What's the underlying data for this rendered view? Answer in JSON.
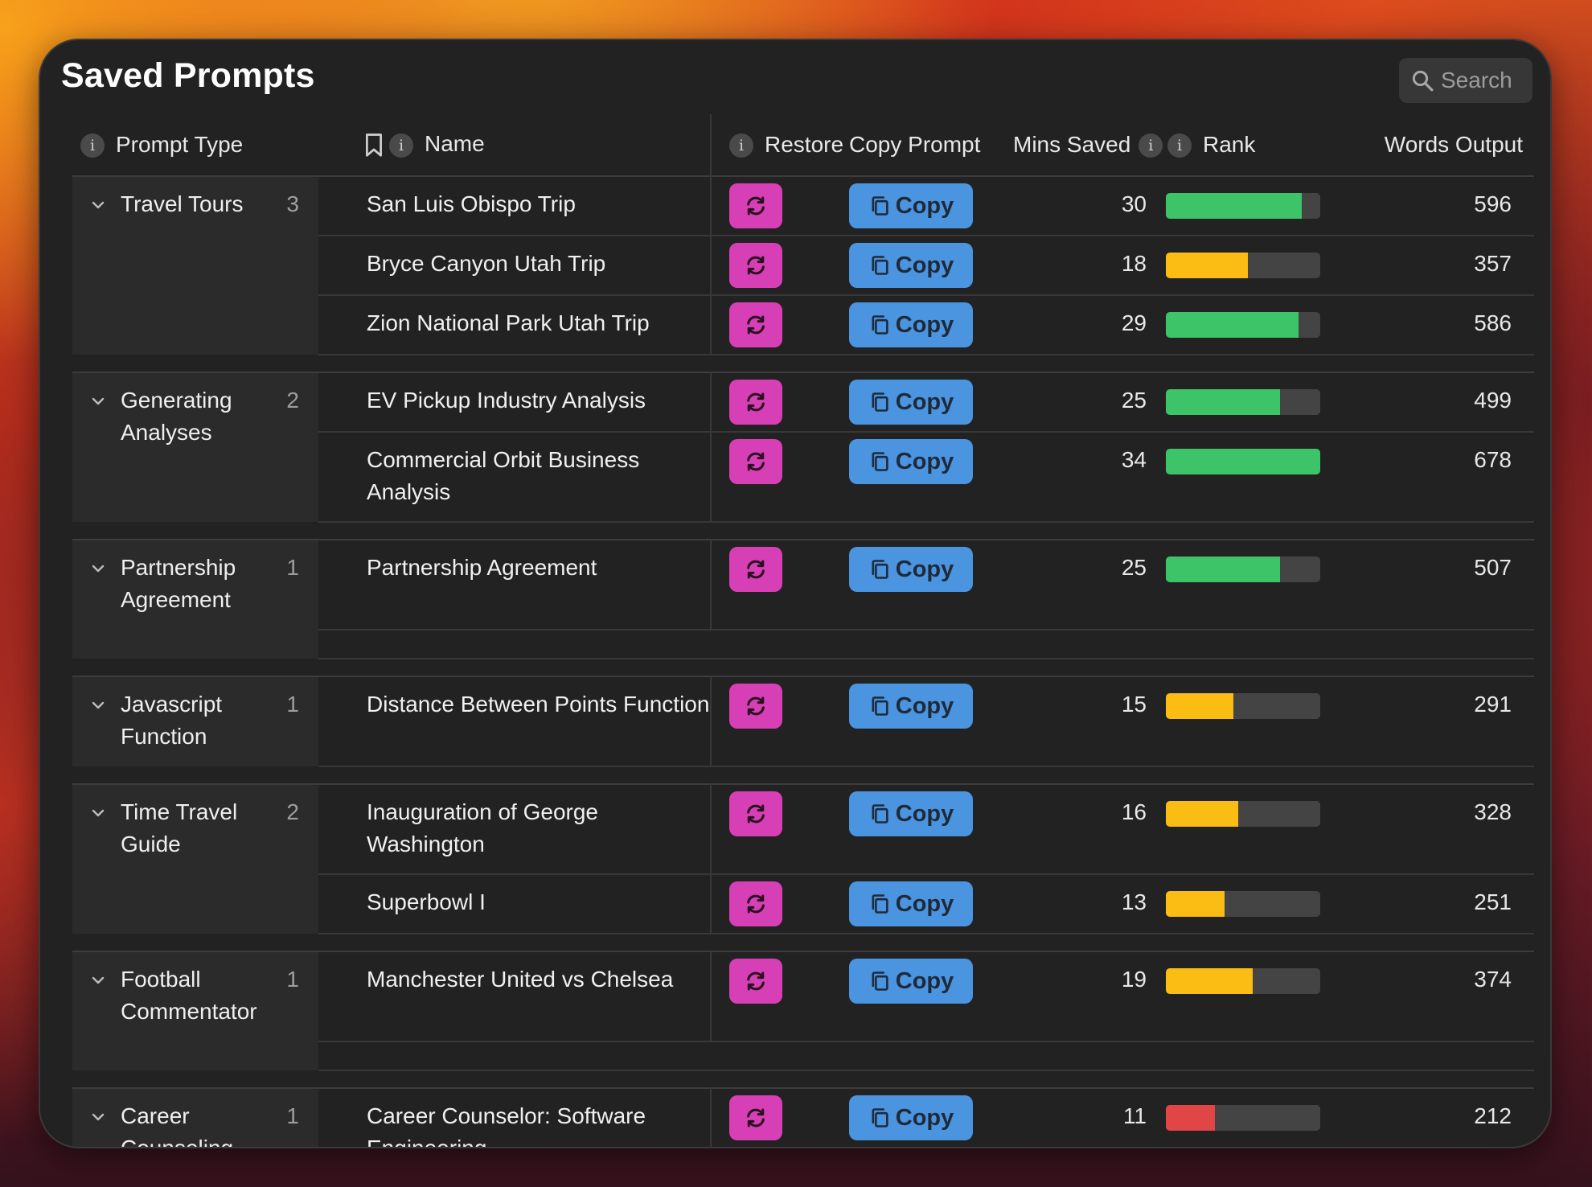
{
  "title": "Saved Prompts",
  "search": {
    "label": "Search"
  },
  "columns": {
    "prompt_type": "Prompt Type",
    "name": "Name",
    "restore": "Restore",
    "copy_prompt": "Copy Prompt",
    "mins_saved": "Mins Saved",
    "rank": "Rank",
    "words_output": "Words Output"
  },
  "copy_label": "Copy",
  "colors": {
    "green": "#3ec468",
    "yellow": "#fbbc13",
    "red": "#e04646",
    "restore": "#d63fb5",
    "copy": "#4a94e0"
  },
  "groups": [
    {
      "type": "Travel Tours",
      "count": "3",
      "rows": [
        {
          "name": "San Luis Obispo Trip",
          "mins": "30",
          "rank": 0.88,
          "rank_color": "green",
          "words": "596"
        },
        {
          "name": "Bryce Canyon Utah Trip",
          "mins": "18",
          "rank": 0.53,
          "rank_color": "yellow",
          "words": "357"
        },
        {
          "name": "Zion National Park Utah Trip",
          "mins": "29",
          "rank": 0.86,
          "rank_color": "green",
          "words": "586"
        }
      ]
    },
    {
      "type": "Generating Analyses",
      "count": "2",
      "rows": [
        {
          "name": "EV Pickup Industry Analysis",
          "mins": "25",
          "rank": 0.74,
          "rank_color": "green",
          "words": "499"
        },
        {
          "name": "Commercial Orbit Business Analysis",
          "mins": "34",
          "rank": 1.0,
          "rank_color": "green",
          "words": "678"
        }
      ]
    },
    {
      "type": "Partnership Agreement",
      "count": "1",
      "rows": [
        {
          "name": "Partnership Agreement",
          "mins": "25",
          "rank": 0.74,
          "rank_color": "green",
          "words": "507"
        }
      ]
    },
    {
      "type": "Javascript Function",
      "count": "1",
      "rows": [
        {
          "name": "Distance Between Points Function",
          "mins": "15",
          "rank": 0.44,
          "rank_color": "yellow",
          "words": "291"
        }
      ]
    },
    {
      "type": "Time Travel Guide",
      "count": "2",
      "rows": [
        {
          "name": "Inauguration of George Washington",
          "mins": "16",
          "rank": 0.47,
          "rank_color": "yellow",
          "words": "328"
        },
        {
          "name": "Superbowl I",
          "mins": "13",
          "rank": 0.38,
          "rank_color": "yellow",
          "words": "251"
        }
      ]
    },
    {
      "type": "Football Commentator",
      "count": "1",
      "rows": [
        {
          "name": "Manchester United vs Chelsea",
          "mins": "19",
          "rank": 0.56,
          "rank_color": "yellow",
          "words": "374"
        }
      ]
    },
    {
      "type": "Career Counseling",
      "count": "1",
      "rows": [
        {
          "name": "Career Counselor: Software Engineering",
          "mins": "11",
          "rank": 0.32,
          "rank_color": "red",
          "words": "212"
        }
      ]
    }
  ]
}
